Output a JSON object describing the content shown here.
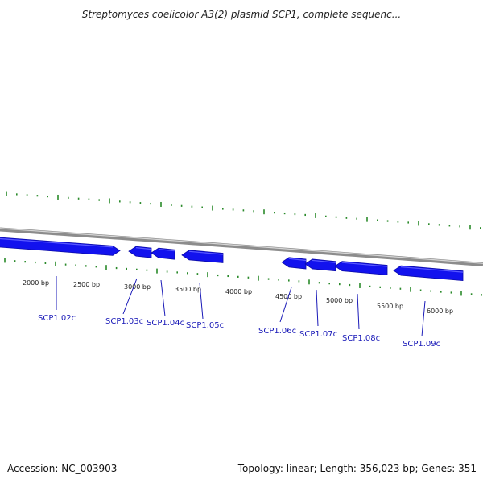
{
  "title": "Streptomyces coelicolor A3(2) plasmid SCP1, complete sequenc...",
  "footer": {
    "accession_label": "Accession: NC_003903",
    "summary": "Topology: linear; Length: 356,023 bp; Genes: 351"
  },
  "colors": {
    "backbone": "#8c8c8c",
    "tick": "#2a8a2a",
    "gene_fill": "#1212ee",
    "gene_label": "#1a1ab8"
  },
  "ruler_labels": [
    "2000 bp",
    "2500 bp",
    "3000 bp",
    "3500 bp",
    "4000 bp",
    "4500 bp",
    "5000 bp",
    "5500 bp",
    "6000 bp"
  ],
  "genes": [
    {
      "name": "SCP1.02c",
      "label": "SCP1.02c",
      "strand": "+"
    },
    {
      "name": "SCP1.03c",
      "label": "SCP1.03c",
      "strand": "-"
    },
    {
      "name": "SCP1.04c",
      "label": "SCP1.04c",
      "strand": "-"
    },
    {
      "name": "SCP1.05c",
      "label": "SCP1.05c",
      "strand": "-"
    },
    {
      "name": "SCP1.06c",
      "label": "SCP1.06c",
      "strand": "-"
    },
    {
      "name": "SCP1.07c",
      "label": "SCP1.07c",
      "strand": "-"
    },
    {
      "name": "SCP1.08c",
      "label": "SCP1.08c",
      "strand": "-"
    },
    {
      "name": "SCP1.09c",
      "label": "SCP1.09c",
      "strand": "-"
    }
  ]
}
